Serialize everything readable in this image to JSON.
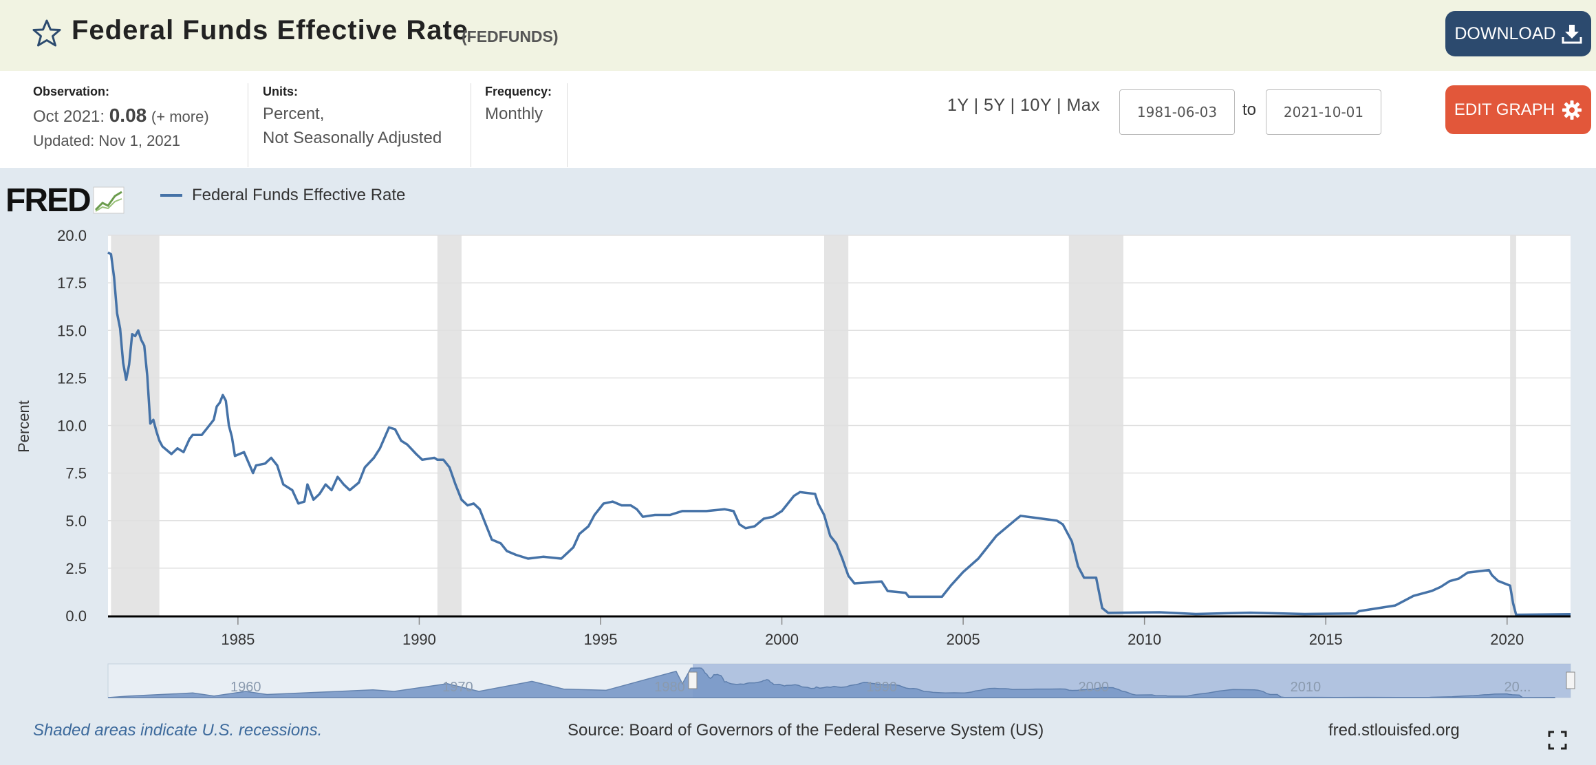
{
  "header": {
    "title": "Federal Funds Effective Rate",
    "series_id": "(FEDFUNDS)",
    "download_label": "DOWNLOAD",
    "icons": [
      "star-icon",
      "download-icon"
    ]
  },
  "info": {
    "observation_label": "Observation:",
    "observation_date": "Oct 2021:",
    "observation_value": "0.08",
    "observation_more": "(+ more)",
    "updated": "Updated: Nov 1, 2021",
    "units_label": "Units:",
    "units_line1": "Percent,",
    "units_line2": "Not Seasonally Adjusted",
    "frequency_label": "Frequency:",
    "frequency_value": "Monthly"
  },
  "controls": {
    "ranges": "1Y | 5Y | 10Y | Max",
    "date_start": "1981-06-03",
    "date_to": "to",
    "date_end": "2021-10-01",
    "edit_graph_label": "EDIT GRAPH",
    "icons": [
      "gear-icon"
    ]
  },
  "chart_data": {
    "type": "line",
    "title": "",
    "legend": "Federal Funds Effective Rate",
    "ylabel": "Percent",
    "xlabel": "",
    "ylim": [
      0,
      20
    ],
    "xlim": [
      "1981-06",
      "2021-10"
    ],
    "y_ticks": [
      "0.0",
      "2.5",
      "5.0",
      "7.5",
      "10.0",
      "12.5",
      "15.0",
      "17.5",
      "20.0"
    ],
    "x_ticks": [
      "1985",
      "1990",
      "1995",
      "2000",
      "2005",
      "2010",
      "2015",
      "2020"
    ],
    "grid": true,
    "color": "#4572a7",
    "recessions": [
      [
        "1981-07",
        "1982-11"
      ],
      [
        "1990-07",
        "1991-03"
      ],
      [
        "2001-03",
        "2001-11"
      ],
      [
        "2007-12",
        "2009-06"
      ],
      [
        "2020-02",
        "2020-04"
      ]
    ],
    "series": [
      {
        "name": "Federal Funds Effective Rate",
        "points": [
          [
            "1981-06",
            19.1
          ],
          [
            "1981-07",
            19.0
          ],
          [
            "1981-08",
            17.8
          ],
          [
            "1981-09",
            15.9
          ],
          [
            "1981-10",
            15.1
          ],
          [
            "1981-11",
            13.3
          ],
          [
            "1981-12",
            12.4
          ],
          [
            "1982-01",
            13.2
          ],
          [
            "1982-02",
            14.8
          ],
          [
            "1982-03",
            14.7
          ],
          [
            "1982-04",
            15.0
          ],
          [
            "1982-05",
            14.5
          ],
          [
            "1982-06",
            14.2
          ],
          [
            "1982-07",
            12.6
          ],
          [
            "1982-08",
            10.1
          ],
          [
            "1982-09",
            10.3
          ],
          [
            "1982-10",
            9.7
          ],
          [
            "1982-11",
            9.2
          ],
          [
            "1982-12",
            8.9
          ],
          [
            "1983-03",
            8.5
          ],
          [
            "1983-05",
            8.8
          ],
          [
            "1983-07",
            8.6
          ],
          [
            "1983-09",
            9.3
          ],
          [
            "1983-10",
            9.5
          ],
          [
            "1984-01",
            9.5
          ],
          [
            "1984-03",
            9.9
          ],
          [
            "1984-05",
            10.3
          ],
          [
            "1984-06",
            11.0
          ],
          [
            "1984-07",
            11.2
          ],
          [
            "1984-08",
            11.6
          ],
          [
            "1984-09",
            11.3
          ],
          [
            "1984-10",
            10.0
          ],
          [
            "1984-11",
            9.4
          ],
          [
            "1984-12",
            8.4
          ],
          [
            "1985-03",
            8.6
          ],
          [
            "1985-06",
            7.5
          ],
          [
            "1985-07",
            7.9
          ],
          [
            "1985-10",
            8.0
          ],
          [
            "1985-12",
            8.3
          ],
          [
            "1986-02",
            7.9
          ],
          [
            "1986-04",
            6.9
          ],
          [
            "1986-07",
            6.6
          ],
          [
            "1986-09",
            5.9
          ],
          [
            "1986-11",
            6.0
          ],
          [
            "1986-12",
            6.9
          ],
          [
            "1987-02",
            6.1
          ],
          [
            "1987-04",
            6.4
          ],
          [
            "1987-06",
            6.9
          ],
          [
            "1987-08",
            6.6
          ],
          [
            "1987-10",
            7.3
          ],
          [
            "1987-12",
            6.9
          ],
          [
            "1988-02",
            6.6
          ],
          [
            "1988-05",
            7.0
          ],
          [
            "1988-07",
            7.8
          ],
          [
            "1988-10",
            8.3
          ],
          [
            "1988-12",
            8.8
          ],
          [
            "1989-03",
            9.9
          ],
          [
            "1989-05",
            9.8
          ],
          [
            "1989-07",
            9.2
          ],
          [
            "1989-09",
            9.0
          ],
          [
            "1989-12",
            8.5
          ],
          [
            "1990-02",
            8.2
          ],
          [
            "1990-06",
            8.3
          ],
          [
            "1990-07",
            8.2
          ],
          [
            "1990-09",
            8.2
          ],
          [
            "1990-11",
            7.8
          ],
          [
            "1991-01",
            6.9
          ],
          [
            "1991-03",
            6.1
          ],
          [
            "1991-05",
            5.8
          ],
          [
            "1991-07",
            5.9
          ],
          [
            "1991-09",
            5.6
          ],
          [
            "1991-11",
            4.8
          ],
          [
            "1992-01",
            4.0
          ],
          [
            "1992-04",
            3.8
          ],
          [
            "1992-06",
            3.4
          ],
          [
            "1992-09",
            3.2
          ],
          [
            "1993-01",
            3.0
          ],
          [
            "1993-06",
            3.1
          ],
          [
            "1993-12",
            3.0
          ],
          [
            "1994-02",
            3.3
          ],
          [
            "1994-04",
            3.6
          ],
          [
            "1994-06",
            4.3
          ],
          [
            "1994-09",
            4.7
          ],
          [
            "1994-11",
            5.3
          ],
          [
            "1995-02",
            5.9
          ],
          [
            "1995-05",
            6.0
          ],
          [
            "1995-08",
            5.8
          ],
          [
            "1995-11",
            5.8
          ],
          [
            "1996-01",
            5.6
          ],
          [
            "1996-03",
            5.2
          ],
          [
            "1996-07",
            5.3
          ],
          [
            "1996-12",
            5.3
          ],
          [
            "1997-04",
            5.5
          ],
          [
            "1997-08",
            5.5
          ],
          [
            "1997-12",
            5.5
          ],
          [
            "1998-06",
            5.6
          ],
          [
            "1998-09",
            5.5
          ],
          [
            "1998-11",
            4.8
          ],
          [
            "1999-01",
            4.6
          ],
          [
            "1999-04",
            4.7
          ],
          [
            "1999-07",
            5.1
          ],
          [
            "1999-10",
            5.2
          ],
          [
            "2000-01",
            5.5
          ],
          [
            "2000-03",
            5.9
          ],
          [
            "2000-05",
            6.3
          ],
          [
            "2000-07",
            6.5
          ],
          [
            "2000-12",
            6.4
          ],
          [
            "2001-01",
            5.9
          ],
          [
            "2001-03",
            5.3
          ],
          [
            "2001-05",
            4.2
          ],
          [
            "2001-07",
            3.8
          ],
          [
            "2001-09",
            3.0
          ],
          [
            "2001-11",
            2.1
          ],
          [
            "2002-01",
            1.7
          ],
          [
            "2002-10",
            1.8
          ],
          [
            "2002-12",
            1.3
          ],
          [
            "2003-06",
            1.2
          ],
          [
            "2003-07",
            1.0
          ],
          [
            "2004-06",
            1.0
          ],
          [
            "2004-09",
            1.6
          ],
          [
            "2005-01",
            2.3
          ],
          [
            "2005-06",
            3.0
          ],
          [
            "2005-12",
            4.2
          ],
          [
            "2006-06",
            5.0
          ],
          [
            "2006-08",
            5.25
          ],
          [
            "2007-08",
            5.0
          ],
          [
            "2007-10",
            4.8
          ],
          [
            "2008-01",
            3.9
          ],
          [
            "2008-03",
            2.6
          ],
          [
            "2008-05",
            2.0
          ],
          [
            "2008-09",
            2.0
          ],
          [
            "2008-11",
            0.4
          ],
          [
            "2009-01",
            0.15
          ],
          [
            "2010-06",
            0.18
          ],
          [
            "2011-06",
            0.09
          ],
          [
            "2012-12",
            0.16
          ],
          [
            "2014-06",
            0.09
          ],
          [
            "2015-11",
            0.12
          ],
          [
            "2015-12",
            0.24
          ],
          [
            "2016-12",
            0.54
          ],
          [
            "2017-03",
            0.79
          ],
          [
            "2017-06",
            1.04
          ],
          [
            "2017-12",
            1.3
          ],
          [
            "2018-03",
            1.51
          ],
          [
            "2018-06",
            1.82
          ],
          [
            "2018-09",
            1.95
          ],
          [
            "2018-12",
            2.27
          ],
          [
            "2019-07",
            2.4
          ],
          [
            "2019-08",
            2.13
          ],
          [
            "2019-10",
            1.83
          ],
          [
            "2020-02",
            1.58
          ],
          [
            "2020-03",
            0.65
          ],
          [
            "2020-04",
            0.05
          ],
          [
            "2021-10",
            0.08
          ]
        ]
      }
    ],
    "navigator": {
      "x_ticks": [
        "1960",
        "1970",
        "1980",
        "1990",
        "2000",
        "2010",
        "20..."
      ]
    }
  },
  "footer": {
    "recession_note": "Shaded areas indicate U.S. recessions.",
    "source": "Source: Board of Governors of the Federal Reserve System (US)",
    "site": "fred.stlouisfed.org",
    "icons": [
      "fullscreen-icon"
    ]
  },
  "brand": {
    "logo_text": "FRED",
    "header_bg": "#f1f3e2",
    "download_bg": "#2c4a6e",
    "edit_bg": "#e2573a",
    "chart_bg": "#e1e9f0",
    "line_color": "#4572a7"
  }
}
